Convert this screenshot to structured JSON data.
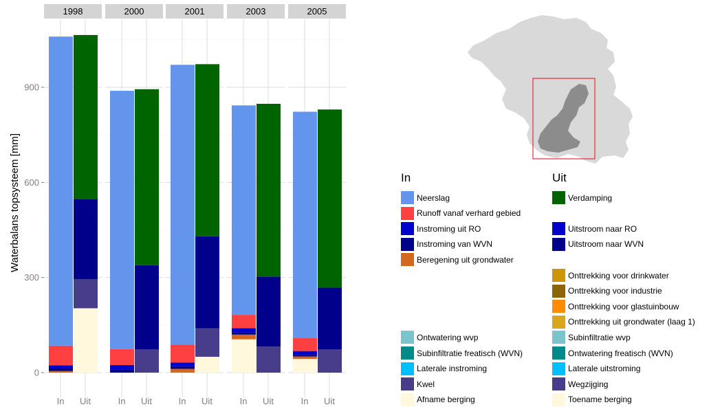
{
  "colors": {
    "Neerslag": "#6495ED",
    "Runoff vanaf verhard gebied": "#FF4040",
    "Instroming uit RO": "#0000CD",
    "Instroming van WVN": "#00008B",
    "Beregening uit grondwater": "#D2691E",
    "Ontwatering wvp": "#7AC5CD",
    "Subinfiltratie freatisch (WVN)": "#008B8B",
    "Laterale instroming": "#00BFFF",
    "Kwel": "#483D8B",
    "Afname berging": "#FFF8DC",
    "Verdamping": "#006400",
    "Uitstroom naar RO": "#0000CD",
    "Uitstroom naar WVN": "#00008B",
    "Onttrekking voor drinkwater": "#CD950C",
    "Onttrekking voor industrie": "#8B6508",
    "Onttrekking voor glastuinbouw": "#FF8C00",
    "Onttrekking uit grondwater (laag 1)": "#DAA520",
    "Subinfiltratie wvp": "#7AC5CD",
    "Ontwatering freatisch (WVN)": "#008B8B",
    "Laterale uitstroming": "#00BFFF",
    "Wegzijging": "#483D8B",
    "Toename berging": "#FFF8DC"
  },
  "chart_data": {
    "type": "bar",
    "stacked": true,
    "facets": [
      "1998",
      "2000",
      "2001",
      "2003",
      "2005"
    ],
    "categories": [
      "In",
      "Uit"
    ],
    "ylabel": "Waterbalans topsysteem [mm]",
    "xlabel": "",
    "ylim": [
      0,
      1080
    ],
    "yticks": [
      0,
      300,
      600,
      900
    ],
    "grid": true,
    "legend_position": "right",
    "legend": {
      "in_title": "In",
      "out_title": "Uit",
      "in": [
        {
          "name": "Neerslag",
          "row": 0
        },
        {
          "name": "Runoff vanaf verhard gebied",
          "row": 1
        },
        {
          "name": "Instroming uit RO",
          "row": 2
        },
        {
          "name": "Instroming van WVN",
          "row": 3
        },
        {
          "name": "Beregening uit grondwater",
          "row": 4
        },
        {
          "name": "Ontwatering wvp",
          "row": 9
        },
        {
          "name": "Subinfiltratie freatisch (WVN)",
          "row": 10
        },
        {
          "name": "Laterale instroming",
          "row": 11
        },
        {
          "name": "Kwel",
          "row": 12
        },
        {
          "name": "Afname berging",
          "row": 13
        }
      ],
      "out": [
        {
          "name": "Verdamping",
          "row": 0
        },
        {
          "name": "Uitstroom naar RO",
          "row": 2
        },
        {
          "name": "Uitstroom naar WVN",
          "row": 3
        },
        {
          "name": "Onttrekking voor drinkwater",
          "row": 5
        },
        {
          "name": "Onttrekking voor industrie",
          "row": 6
        },
        {
          "name": "Onttrekking voor glastuinbouw",
          "row": 7
        },
        {
          "name": "Onttrekking uit grondwater (laag 1)",
          "row": 8
        },
        {
          "name": "Subinfiltratie wvp",
          "row": 9
        },
        {
          "name": "Ontwatering freatisch (WVN)",
          "row": 10
        },
        {
          "name": "Laterale uitstroming",
          "row": 11
        },
        {
          "name": "Wegzijging",
          "row": 12
        },
        {
          "name": "Toename berging",
          "row": 13
        }
      ]
    },
    "data": {
      "1998": {
        "In": [
          {
            "series": "Beregening uit grondwater",
            "value": 5
          },
          {
            "series": "Instroming van WVN",
            "value": 8
          },
          {
            "series": "Instroming uit RO",
            "value": 10
          },
          {
            "series": "Runoff vanaf verhard gebied",
            "value": 62
          },
          {
            "series": "Neerslag",
            "value": 975
          }
        ],
        "Uit": [
          {
            "series": "Toename berging",
            "value": 203
          },
          {
            "series": "Wegzijging",
            "value": 92
          },
          {
            "series": "Uitstroom naar WVN",
            "value": 253
          },
          {
            "series": "Verdamping",
            "value": 517
          }
        ]
      },
      "2000": {
        "In": [
          {
            "series": "Instroming van WVN",
            "value": 10
          },
          {
            "series": "Instroming uit RO",
            "value": 14
          },
          {
            "series": "Runoff vanaf verhard gebied",
            "value": 50
          },
          {
            "series": "Neerslag",
            "value": 815
          }
        ],
        "Uit": [
          {
            "series": "Wegzijging",
            "value": 73
          },
          {
            "series": "Uitstroom naar WVN",
            "value": 266
          },
          {
            "series": "Verdamping",
            "value": 555
          }
        ]
      },
      "2001": {
        "In": [
          {
            "series": "Beregening uit grondwater",
            "value": 12
          },
          {
            "series": "Instroming van WVN",
            "value": 8
          },
          {
            "series": "Instroming uit RO",
            "value": 12
          },
          {
            "series": "Runoff vanaf verhard gebied",
            "value": 56
          },
          {
            "series": "Neerslag",
            "value": 883
          }
        ],
        "Uit": [
          {
            "series": "Toename berging",
            "value": 50
          },
          {
            "series": "Wegzijging",
            "value": 90
          },
          {
            "series": "Uitstroom naar WVN",
            "value": 290
          },
          {
            "series": "Verdamping",
            "value": 543
          }
        ]
      },
      "2003": {
        "In": [
          {
            "series": "Afname berging",
            "value": 105
          },
          {
            "series": "Beregening uit grondwater",
            "value": 15
          },
          {
            "series": "Instroming van WVN",
            "value": 6
          },
          {
            "series": "Instroming uit RO",
            "value": 14
          },
          {
            "series": "Runoff vanaf verhard gebied",
            "value": 42
          },
          {
            "series": "Neerslag",
            "value": 661
          }
        ],
        "Uit": [
          {
            "series": "Wegzijging",
            "value": 82
          },
          {
            "series": "Uitstroom naar WVN",
            "value": 221
          },
          {
            "series": "Verdamping",
            "value": 545
          }
        ]
      },
      "2005": {
        "In": [
          {
            "series": "Afname berging",
            "value": 43
          },
          {
            "series": "Beregening uit grondwater",
            "value": 8
          },
          {
            "series": "Instroming van WVN",
            "value": 5
          },
          {
            "series": "Instroming uit RO",
            "value": 12
          },
          {
            "series": "Runoff vanaf verhard gebied",
            "value": 42
          },
          {
            "series": "Neerslag",
            "value": 713
          }
        ],
        "Uit": [
          {
            "series": "Wegzijging",
            "value": 73
          },
          {
            "series": "Uitstroom naar WVN",
            "value": 195
          },
          {
            "series": "Verdamping",
            "value": 562
          }
        ]
      }
    }
  }
}
